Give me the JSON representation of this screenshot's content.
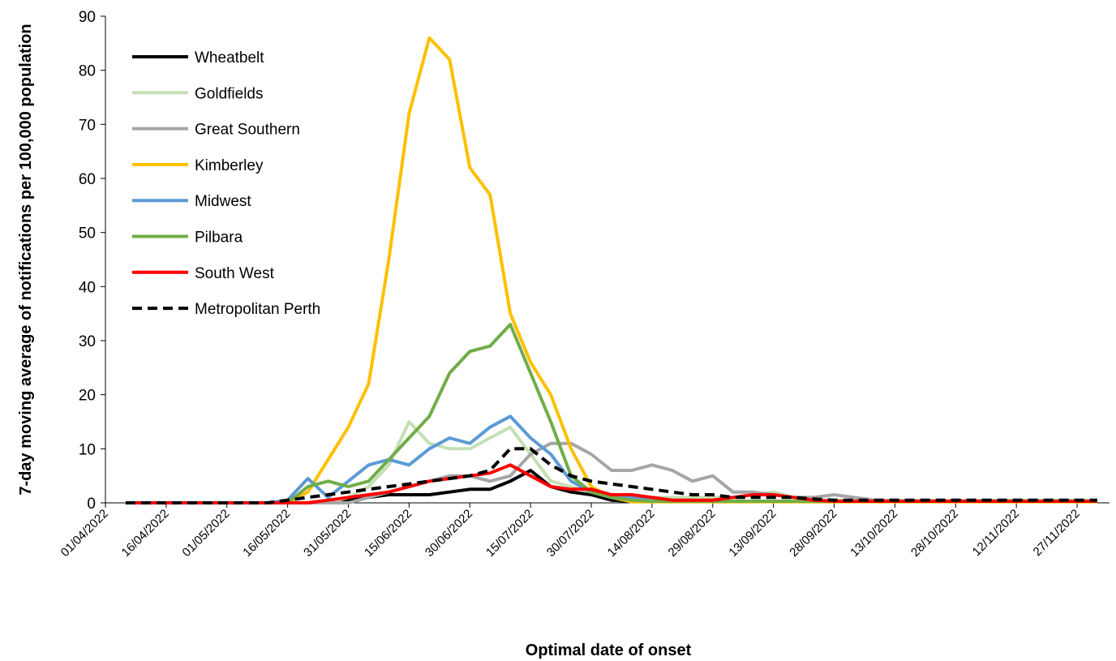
{
  "chart_data": {
    "type": "line",
    "y_label": "7-day moving average of notifications per 100,000 population",
    "x_label": "Optimal date of onset",
    "x": [
      "06/04/2022",
      "11/04/2022",
      "16/04/2022",
      "21/04/2022",
      "26/04/2022",
      "01/05/2022",
      "06/05/2022",
      "11/05/2022",
      "16/05/2022",
      "21/05/2022",
      "26/05/2022",
      "31/05/2022",
      "05/06/2022",
      "10/06/2022",
      "15/06/2022",
      "20/06/2022",
      "25/06/2022",
      "30/06/2022",
      "05/07/2022",
      "10/07/2022",
      "15/07/2022",
      "20/07/2022",
      "25/07/2022",
      "30/07/2022",
      "04/08/2022",
      "09/08/2022",
      "14/08/2022",
      "19/08/2022",
      "24/08/2022",
      "29/08/2022",
      "03/09/2022",
      "08/09/2022",
      "13/09/2022",
      "18/09/2022",
      "23/09/2022",
      "28/09/2022",
      "03/10/2022",
      "08/10/2022",
      "13/10/2022",
      "18/10/2022",
      "23/10/2022",
      "28/10/2022",
      "02/11/2022",
      "07/11/2022",
      "12/11/2022",
      "17/11/2022",
      "22/11/2022",
      "27/11/2022",
      "02/12/2022"
    ],
    "xlim": [
      "01/04/2022",
      "05/12/2022"
    ],
    "xticks": [
      "01/04/2022",
      "16/04/2022",
      "01/05/2022",
      "16/05/2022",
      "31/05/2022",
      "15/06/2022",
      "30/06/2022",
      "15/07/2022",
      "30/07/2022",
      "14/08/2022",
      "29/08/2022",
      "13/09/2022",
      "28/09/2022",
      "13/10/2022",
      "28/10/2022",
      "12/11/2022",
      "27/11/2022"
    ],
    "ylim": [
      0,
      90
    ],
    "yticks": [
      0,
      10,
      20,
      30,
      40,
      50,
      60,
      70,
      80,
      90
    ],
    "legend": "upper left",
    "series": [
      {
        "name": "Wheatbelt",
        "color": "#000000",
        "values": [
          0,
          0,
          0,
          0,
          0,
          0,
          0,
          0,
          0,
          0,
          0,
          0.5,
          1,
          1.5,
          1.5,
          1.5,
          2,
          2.5,
          2.5,
          4,
          6,
          3,
          2,
          1.5,
          0.5,
          0.3,
          0.3,
          0.3,
          0.3,
          0.3,
          0.3,
          0.3,
          0.3,
          0.3,
          0.3,
          0.3,
          0.3,
          0.3,
          0.3,
          0.3,
          0.3,
          0.3,
          0.3,
          0.3,
          0.3,
          0.3,
          0.3,
          0.3,
          0.3
        ]
      },
      {
        "name": "Goldfields",
        "color": "#c5e0b4",
        "values": [
          0,
          0,
          0,
          0,
          0,
          0,
          0,
          0,
          0,
          0,
          0,
          1,
          3,
          7,
          15,
          11,
          10,
          10,
          12,
          14,
          9,
          4,
          3,
          2,
          1,
          1,
          1,
          1,
          1,
          1,
          1,
          1.5,
          2,
          1,
          0.5,
          0.5,
          0.5,
          0.5,
          0.5,
          0.5,
          0.5,
          0.5,
          0.5,
          0.5,
          0.5,
          0.5,
          0.5,
          0.5,
          0.5
        ]
      },
      {
        "name": "Great Southern",
        "color": "#a6a6a6",
        "values": [
          0,
          0,
          0,
          0,
          0,
          0,
          0,
          0,
          0,
          0,
          0,
          0,
          1,
          2,
          3,
          4,
          5,
          5,
          4,
          5,
          9,
          11,
          11,
          9,
          6,
          6,
          7,
          6,
          4,
          5,
          2,
          2,
          1.5,
          1,
          1,
          1.5,
          1,
          0.5,
          0.3,
          0.3,
          0.3,
          0.3,
          0.3,
          0.3,
          0.3,
          0.3,
          0.3,
          0.3,
          0.3
        ]
      },
      {
        "name": "Kimberley",
        "color": "#ffc000",
        "values": [
          0,
          0,
          0,
          0,
          0,
          0,
          0,
          0,
          0,
          2,
          8,
          14,
          22,
          45,
          72,
          86,
          82,
          62,
          57,
          35,
          26,
          20,
          10,
          3,
          1,
          0.2,
          0.2,
          0.2,
          0.2,
          0.2,
          0.2,
          0.2,
          0.2,
          0.2,
          0.2,
          0.2,
          0.2,
          0.2,
          0.2,
          0.2,
          0.2,
          0.2,
          0.2,
          0.2,
          0.2,
          0.2,
          0.2,
          0.2,
          0.2
        ]
      },
      {
        "name": "Midwest",
        "color": "#5b9bd5",
        "values": [
          0,
          0,
          0,
          0,
          0,
          0,
          0,
          0,
          0.5,
          4.5,
          1,
          4,
          7,
          8,
          7,
          10,
          12,
          11,
          14,
          16,
          12,
          9,
          4,
          2,
          1,
          1,
          0.8,
          0.5,
          0.3,
          0.3,
          0.3,
          0.3,
          0.3,
          0.3,
          0.3,
          0.3,
          0.3,
          0.3,
          0.3,
          0.3,
          0.3,
          0.3,
          0.3,
          0.3,
          0.3,
          0.3,
          0.3,
          0.3,
          0.3
        ]
      },
      {
        "name": "Pilbara",
        "color": "#70ad47",
        "values": [
          0,
          0,
          0,
          0,
          0,
          0,
          0,
          0,
          0,
          3,
          4,
          3,
          4,
          8,
          12,
          16,
          24,
          28,
          29,
          33,
          24,
          15,
          5,
          2,
          1,
          0.5,
          0.3,
          0.3,
          0.3,
          0.3,
          0.3,
          0.3,
          0.3,
          0.3,
          0.3,
          0.3,
          0.3,
          0.3,
          0.3,
          0.3,
          0.3,
          0.3,
          0.3,
          0.3,
          0.3,
          0.3,
          0.3,
          0.3,
          0.3
        ]
      },
      {
        "name": "South West",
        "color": "#ff0000",
        "values": [
          0,
          0,
          0,
          0,
          0,
          0,
          0,
          0,
          0,
          0,
          0.5,
          1,
          1.5,
          2,
          3,
          4,
          4.5,
          5,
          5.5,
          7,
          5,
          3,
          2.5,
          2.5,
          1.5,
          1.5,
          1,
          0.5,
          0.5,
          0.5,
          1,
          1.5,
          1.5,
          1,
          0.5,
          0.3,
          0.3,
          0.3,
          0.3,
          0.3,
          0.3,
          0.3,
          0.3,
          0.3,
          0.3,
          0.3,
          0.3,
          0.3,
          0.3
        ]
      },
      {
        "name": "Metropolitan Perth",
        "color": "#000000",
        "dashed": true,
        "values": [
          0,
          0,
          0,
          0,
          0,
          0,
          0,
          0,
          0.5,
          1,
          1.5,
          2,
          2.5,
          3,
          3.5,
          4,
          4.5,
          5,
          6,
          10,
          10,
          7,
          5,
          4,
          3.5,
          3,
          2.5,
          2,
          1.5,
          1.5,
          1,
          1,
          1,
          1,
          0.7,
          0.5,
          0.5,
          0.5,
          0.5,
          0.5,
          0.5,
          0.5,
          0.5,
          0.5,
          0.5,
          0.5,
          0.5,
          0.5,
          0.5
        ]
      }
    ]
  }
}
